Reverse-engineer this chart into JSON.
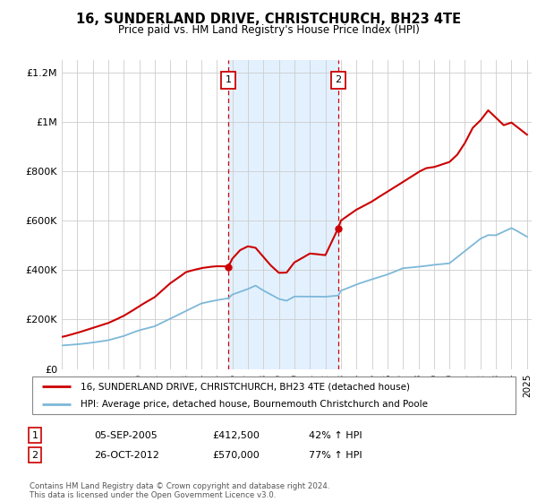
{
  "title": "16, SUNDERLAND DRIVE, CHRISTCHURCH, BH23 4TE",
  "subtitle": "Price paid vs. HM Land Registry's House Price Index (HPI)",
  "legend_line1": "16, SUNDERLAND DRIVE, CHRISTCHURCH, BH23 4TE (detached house)",
  "legend_line2": "HPI: Average price, detached house, Bournemouth Christchurch and Poole",
  "annotation1_date": "05-SEP-2005",
  "annotation1_price": "£412,500",
  "annotation1_hpi": "42% ↑ HPI",
  "annotation2_date": "26-OCT-2012",
  "annotation2_price": "£570,000",
  "annotation2_hpi": "77% ↑ HPI",
  "footnote": "Contains HM Land Registry data © Crown copyright and database right 2024.\nThis data is licensed under the Open Government Licence v3.0.",
  "sale1_year": 2005.75,
  "sale1_value": 412500,
  "sale2_year": 2012.83,
  "sale2_value": 570000,
  "hpi_color": "#7db8d8",
  "price_color": "#cc0000",
  "shade_color": "#ddeeff",
  "ylim_max": 1250000,
  "background_color": "#ffffff",
  "hpi_anchor_years": [
    1995,
    1996,
    1997,
    1998,
    1999,
    2000,
    2001,
    2002,
    2003,
    2004,
    2005,
    2005.75,
    2006,
    2007,
    2007.5,
    2008,
    2009,
    2009.5,
    2010,
    2011,
    2012,
    2012.83,
    2013,
    2014,
    2015,
    2016,
    2017,
    2018,
    2019,
    2020,
    2021,
    2022,
    2022.5,
    2023,
    2024,
    2025
  ],
  "hpi_anchor_vals": [
    95000,
    100000,
    107000,
    118000,
    135000,
    158000,
    175000,
    205000,
    235000,
    265000,
    278000,
    285000,
    300000,
    325000,
    340000,
    320000,
    285000,
    278000,
    295000,
    295000,
    295000,
    300000,
    320000,
    345000,
    365000,
    385000,
    410000,
    415000,
    425000,
    430000,
    480000,
    530000,
    545000,
    545000,
    575000,
    540000
  ],
  "price_anchor_years": [
    1995,
    1996,
    1997,
    1998,
    1999,
    2000,
    2001,
    2002,
    2003,
    2004,
    2005,
    2005.75,
    2006,
    2006.5,
    2007,
    2007.5,
    2008,
    2008.5,
    2009,
    2009.5,
    2010,
    2011,
    2012,
    2012.83,
    2013,
    2014,
    2015,
    2016,
    2016.5,
    2017,
    2017.5,
    2018,
    2018.5,
    2019,
    2019.5,
    2020,
    2020.5,
    2021,
    2021.5,
    2022,
    2022.5,
    2023,
    2023.5,
    2024,
    2024.5,
    2025
  ],
  "price_anchor_vals": [
    130000,
    145000,
    165000,
    185000,
    215000,
    255000,
    290000,
    345000,
    390000,
    405000,
    412500,
    412500,
    445000,
    480000,
    495000,
    490000,
    455000,
    420000,
    390000,
    390000,
    430000,
    465000,
    460000,
    570000,
    600000,
    645000,
    680000,
    720000,
    740000,
    760000,
    780000,
    800000,
    815000,
    820000,
    830000,
    840000,
    870000,
    920000,
    980000,
    1010000,
    1050000,
    1020000,
    990000,
    1000000,
    975000,
    950000
  ]
}
